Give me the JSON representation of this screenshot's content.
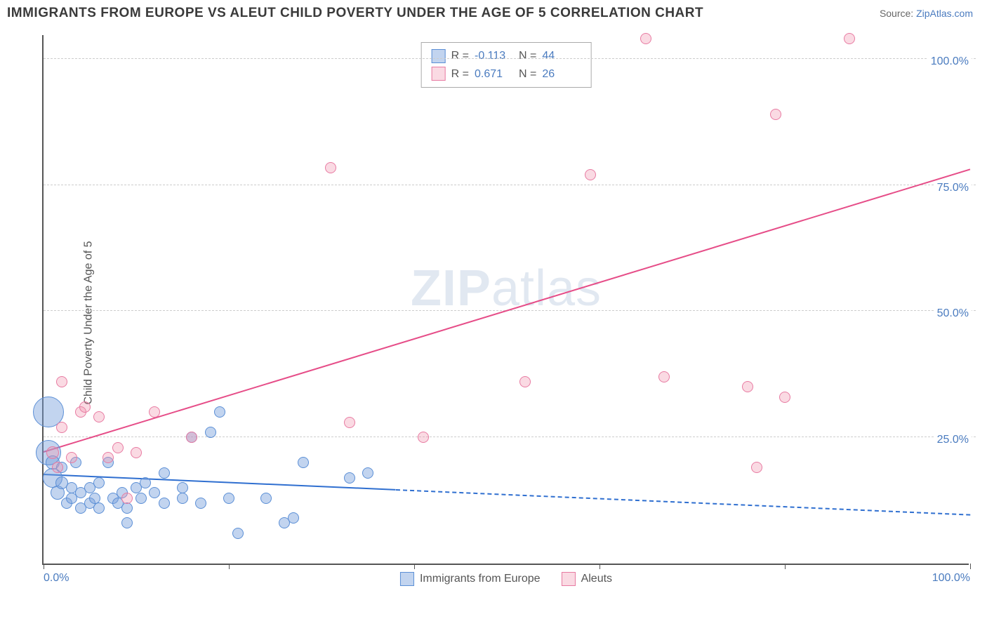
{
  "title": "IMMIGRANTS FROM EUROPE VS ALEUT CHILD POVERTY UNDER THE AGE OF 5 CORRELATION CHART",
  "source_prefix": "Source: ",
  "source_link": "ZipAtlas.com",
  "y_axis_label": "Child Poverty Under the Age of 5",
  "watermark_a": "ZIP",
  "watermark_b": "atlas",
  "chart": {
    "type": "scatter",
    "xlim": [
      0,
      100
    ],
    "ylim": [
      0,
      105
    ],
    "ytick_values": [
      25,
      50,
      75,
      100
    ],
    "ytick_labels": [
      "25.0%",
      "50.0%",
      "75.0%",
      "100.0%"
    ],
    "xtick_values": [
      0,
      20,
      40,
      60,
      80,
      100
    ],
    "xtick_labels_shown": {
      "0": "0.0%",
      "100": "100.0%"
    },
    "background_color": "#ffffff",
    "grid_color": "#cccccc",
    "axis_color": "#555555",
    "tick_label_color": "#4a7bbf",
    "series": [
      {
        "key": "europe",
        "label": "Immigrants from Europe",
        "fill": "rgba(120,160,220,0.45)",
        "stroke": "#5b8fd6",
        "trend_color": "#2f6fd0",
        "r_value": "-0.113",
        "n_value": "44",
        "trend": {
          "x1": 0,
          "y1": 17.5,
          "x2": 100,
          "y2": 9.5,
          "solid_until_x": 38
        },
        "points": [
          {
            "x": 0.5,
            "y": 30,
            "r": 22
          },
          {
            "x": 0.5,
            "y": 22,
            "r": 18
          },
          {
            "x": 1,
            "y": 17,
            "r": 14
          },
          {
            "x": 1,
            "y": 20,
            "r": 10
          },
          {
            "x": 1.5,
            "y": 14,
            "r": 10
          },
          {
            "x": 2,
            "y": 16,
            "r": 9
          },
          {
            "x": 2,
            "y": 19,
            "r": 8
          },
          {
            "x": 2.5,
            "y": 12,
            "r": 8
          },
          {
            "x": 3,
            "y": 15,
            "r": 8
          },
          {
            "x": 3,
            "y": 13,
            "r": 8
          },
          {
            "x": 3.5,
            "y": 20,
            "r": 8
          },
          {
            "x": 4,
            "y": 11,
            "r": 8
          },
          {
            "x": 4,
            "y": 14,
            "r": 8
          },
          {
            "x": 5,
            "y": 12,
            "r": 8
          },
          {
            "x": 5,
            "y": 15,
            "r": 8
          },
          {
            "x": 5.5,
            "y": 13,
            "r": 8
          },
          {
            "x": 6,
            "y": 11,
            "r": 8
          },
          {
            "x": 6,
            "y": 16,
            "r": 8
          },
          {
            "x": 7,
            "y": 20,
            "r": 8
          },
          {
            "x": 7.5,
            "y": 13,
            "r": 8
          },
          {
            "x": 8,
            "y": 12,
            "r": 8
          },
          {
            "x": 8.5,
            "y": 14,
            "r": 8
          },
          {
            "x": 9,
            "y": 11,
            "r": 8
          },
          {
            "x": 9,
            "y": 8,
            "r": 8
          },
          {
            "x": 10,
            "y": 15,
            "r": 8
          },
          {
            "x": 10.5,
            "y": 13,
            "r": 8
          },
          {
            "x": 11,
            "y": 16,
            "r": 8
          },
          {
            "x": 12,
            "y": 14,
            "r": 8
          },
          {
            "x": 13,
            "y": 12,
            "r": 8
          },
          {
            "x": 13,
            "y": 18,
            "r": 8
          },
          {
            "x": 15,
            "y": 13,
            "r": 8
          },
          {
            "x": 15,
            "y": 15,
            "r": 8
          },
          {
            "x": 16,
            "y": 25,
            "r": 8
          },
          {
            "x": 17,
            "y": 12,
            "r": 8
          },
          {
            "x": 18,
            "y": 26,
            "r": 8
          },
          {
            "x": 19,
            "y": 30,
            "r": 8
          },
          {
            "x": 20,
            "y": 13,
            "r": 8
          },
          {
            "x": 21,
            "y": 6,
            "r": 8
          },
          {
            "x": 24,
            "y": 13,
            "r": 8
          },
          {
            "x": 26,
            "y": 8,
            "r": 8
          },
          {
            "x": 27,
            "y": 9,
            "r": 8
          },
          {
            "x": 28,
            "y": 20,
            "r": 8
          },
          {
            "x": 33,
            "y": 17,
            "r": 8
          },
          {
            "x": 35,
            "y": 18,
            "r": 8
          }
        ]
      },
      {
        "key": "aleuts",
        "label": "Aleuts",
        "fill": "rgba(240,150,175,0.35)",
        "stroke": "#e87ba2",
        "trend_color": "#e64d88",
        "r_value": "0.671",
        "n_value": "26",
        "trend": {
          "x1": 0,
          "y1": 22,
          "x2": 100,
          "y2": 78,
          "solid_until_x": 100
        },
        "points": [
          {
            "x": 1,
            "y": 22,
            "r": 9
          },
          {
            "x": 1.5,
            "y": 19,
            "r": 8
          },
          {
            "x": 2,
            "y": 27,
            "r": 8
          },
          {
            "x": 2,
            "y": 36,
            "r": 8
          },
          {
            "x": 3,
            "y": 21,
            "r": 8
          },
          {
            "x": 4,
            "y": 30,
            "r": 8
          },
          {
            "x": 4.5,
            "y": 31,
            "r": 8
          },
          {
            "x": 6,
            "y": 29,
            "r": 8
          },
          {
            "x": 7,
            "y": 21,
            "r": 8
          },
          {
            "x": 8,
            "y": 23,
            "r": 8
          },
          {
            "x": 9,
            "y": 13,
            "r": 8
          },
          {
            "x": 10,
            "y": 22,
            "r": 8
          },
          {
            "x": 12,
            "y": 30,
            "r": 8
          },
          {
            "x": 16,
            "y": 25,
            "r": 8
          },
          {
            "x": 31,
            "y": 78.5,
            "r": 8
          },
          {
            "x": 33,
            "y": 28,
            "r": 8
          },
          {
            "x": 41,
            "y": 25,
            "r": 8
          },
          {
            "x": 52,
            "y": 36,
            "r": 8
          },
          {
            "x": 59,
            "y": 77,
            "r": 8
          },
          {
            "x": 65,
            "y": 104,
            "r": 8
          },
          {
            "x": 67,
            "y": 37,
            "r": 8
          },
          {
            "x": 76,
            "y": 35,
            "r": 8
          },
          {
            "x": 77,
            "y": 19,
            "r": 8
          },
          {
            "x": 79,
            "y": 89,
            "r": 8
          },
          {
            "x": 80,
            "y": 33,
            "r": 8
          },
          {
            "x": 87,
            "y": 104,
            "r": 8
          }
        ]
      }
    ]
  },
  "stats_labels": {
    "r": "R  =",
    "n": "N  ="
  },
  "legend": {
    "series1": "Immigrants from Europe",
    "series2": "Aleuts"
  }
}
